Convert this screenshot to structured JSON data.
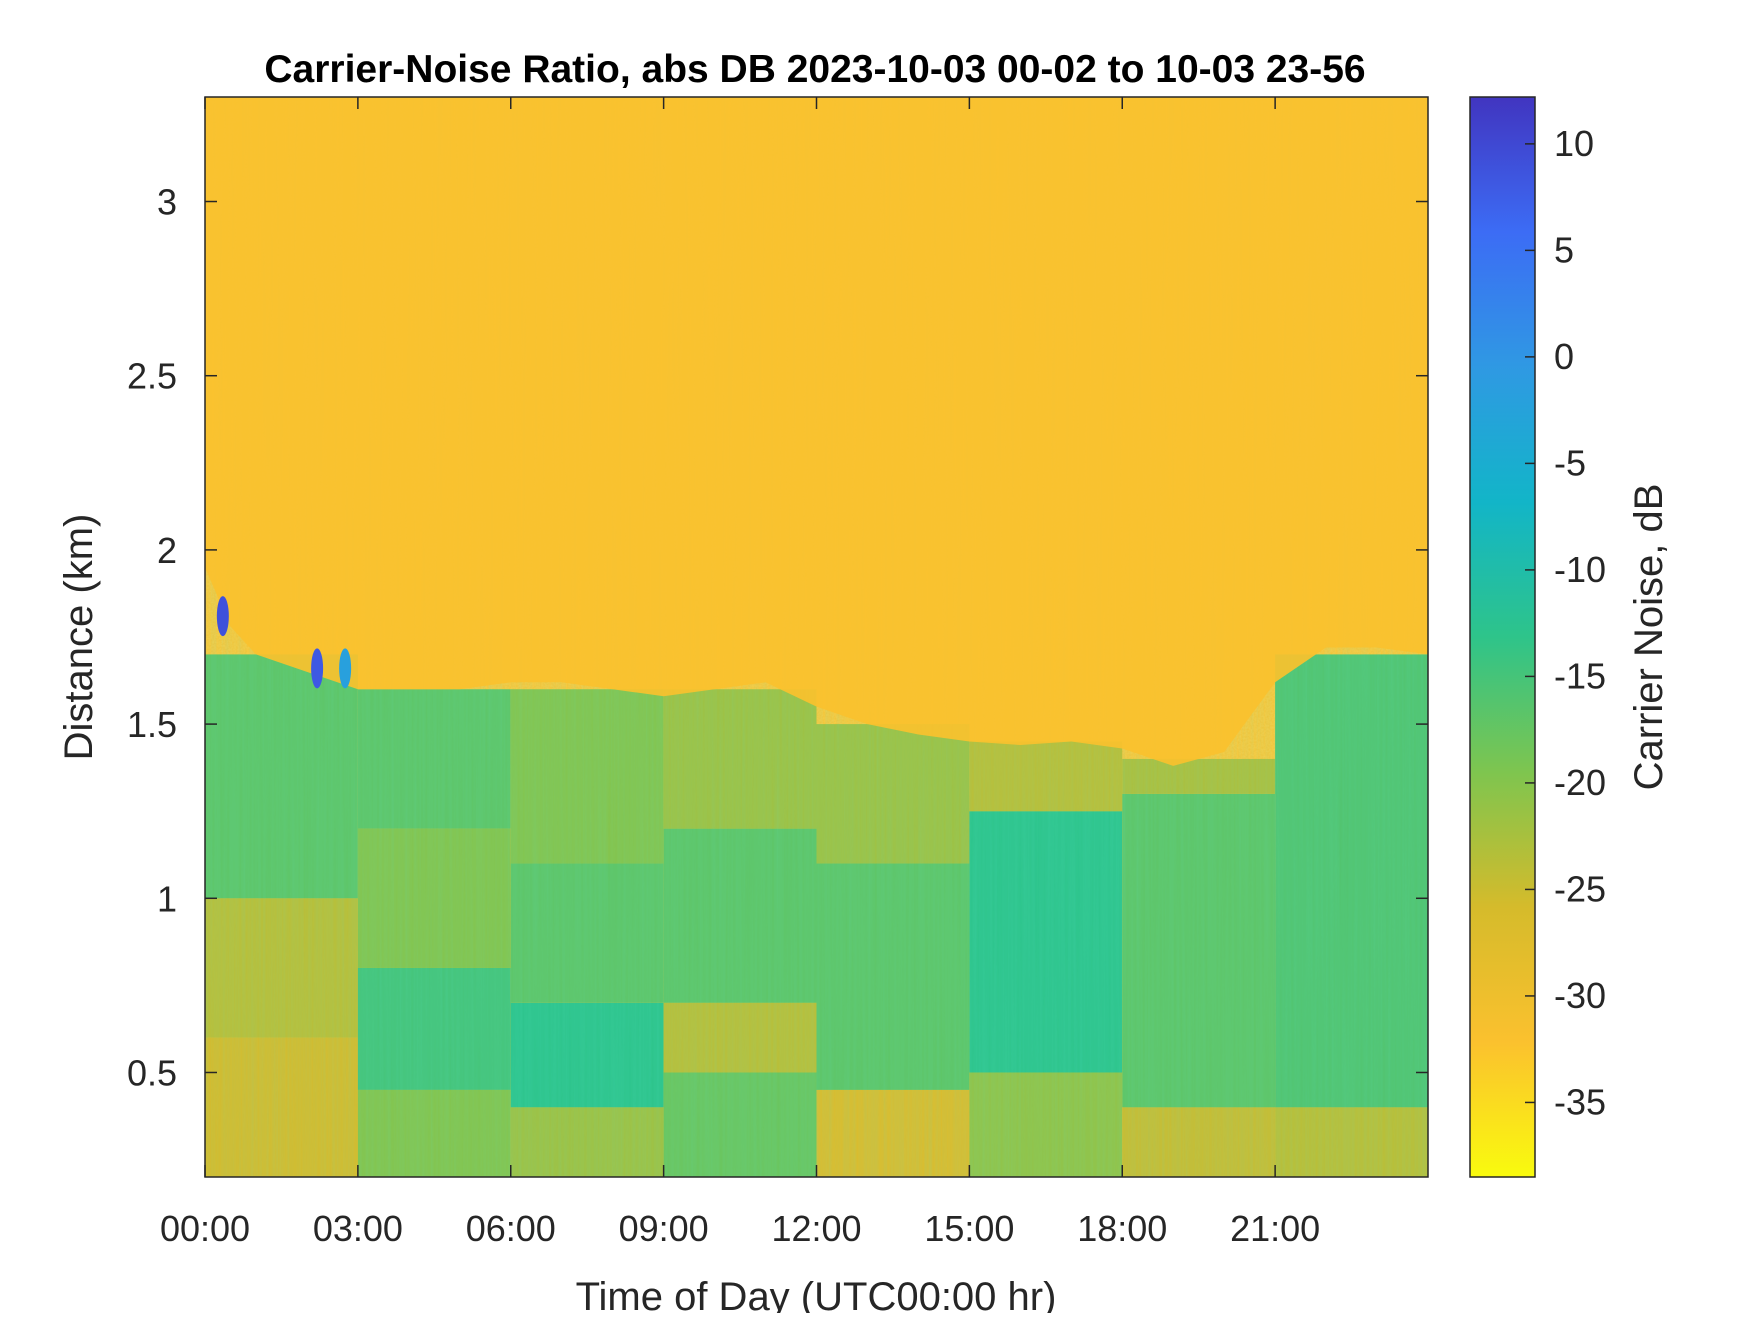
{
  "chart_data": {
    "type": "heatmap",
    "title": "Carrier-Noise Ratio, abs DB 2023-10-03 00-02 to 10-03 23-56",
    "xlabel": "Time of Day (UTC00:00 hr)",
    "ylabel": "Distance (km)",
    "colorbar_label": "Carrier Noise, dB",
    "xlim_hours": [
      0,
      24
    ],
    "ylim_km": [
      0.2,
      3.3
    ],
    "clim_db": [
      -38.5,
      12.2
    ],
    "x_ticks": [
      {
        "hour": 0,
        "label": "00:00"
      },
      {
        "hour": 3,
        "label": "03:00"
      },
      {
        "hour": 6,
        "label": "06:00"
      },
      {
        "hour": 9,
        "label": "09:00"
      },
      {
        "hour": 12,
        "label": "12:00"
      },
      {
        "hour": 15,
        "label": "15:00"
      },
      {
        "hour": 18,
        "label": "18:00"
      },
      {
        "hour": 21,
        "label": "21:00"
      }
    ],
    "y_ticks": [
      {
        "value": 0.5,
        "label": "0.5"
      },
      {
        "value": 1,
        "label": "1"
      },
      {
        "value": 1.5,
        "label": "1.5"
      },
      {
        "value": 2,
        "label": "2"
      },
      {
        "value": 2.5,
        "label": "2.5"
      },
      {
        "value": 3,
        "label": "3"
      }
    ],
    "colorbar_ticks": [
      {
        "value": 10,
        "label": "10"
      },
      {
        "value": 5,
        "label": "5"
      },
      {
        "value": 0,
        "label": "0"
      },
      {
        "value": -5,
        "label": "-5"
      },
      {
        "value": -10,
        "label": "-10"
      },
      {
        "value": -15,
        "label": "-15"
      },
      {
        "value": -20,
        "label": "-20"
      },
      {
        "value": -25,
        "label": "-25"
      },
      {
        "value": -30,
        "label": "-30"
      },
      {
        "value": -35,
        "label": "-35"
      }
    ],
    "colormap": "parula-reversed",
    "colormap_stops": [
      "#f9fb0e",
      "#fbc12e",
      "#d5bb2b",
      "#7ec54f",
      "#2ec48a",
      "#12b5c8",
      "#2f99e3",
      "#3c6cf5",
      "#4135c0"
    ],
    "noise_floor_db": -32,
    "signal_top_km": [
      [
        0,
        1.95
      ],
      [
        0.5,
        1.78
      ],
      [
        1,
        1.7
      ],
      [
        2,
        1.65
      ],
      [
        3,
        1.6
      ],
      [
        4,
        1.6
      ],
      [
        5,
        1.6
      ],
      [
        6,
        1.62
      ],
      [
        7,
        1.62
      ],
      [
        8,
        1.6
      ],
      [
        9,
        1.58
      ],
      [
        10,
        1.6
      ],
      [
        11,
        1.62
      ],
      [
        12,
        1.55
      ],
      [
        13,
        1.5
      ],
      [
        14,
        1.47
      ],
      [
        15,
        1.45
      ],
      [
        16,
        1.44
      ],
      [
        17,
        1.45
      ],
      [
        18,
        1.43
      ],
      [
        19,
        1.38
      ],
      [
        20,
        1.42
      ],
      [
        21,
        1.62
      ],
      [
        22,
        1.72
      ],
      [
        23,
        1.72
      ],
      [
        24,
        1.7
      ]
    ],
    "cells": [
      {
        "h0": 0,
        "h1": 3,
        "d0": 0.2,
        "d1": 0.6,
        "db": -26
      },
      {
        "h0": 0,
        "h1": 3,
        "d0": 0.6,
        "d1": 1.0,
        "db": -24
      },
      {
        "h0": 0,
        "h1": 3,
        "d0": 1.0,
        "d1": 1.7,
        "db": -17
      },
      {
        "h0": 3,
        "h1": 6,
        "d0": 0.2,
        "d1": 0.45,
        "db": -20
      },
      {
        "h0": 3,
        "h1": 6,
        "d0": 0.45,
        "d1": 0.8,
        "db": -15
      },
      {
        "h0": 3,
        "h1": 6,
        "d0": 0.8,
        "d1": 1.2,
        "db": -20
      },
      {
        "h0": 3,
        "h1": 6,
        "d0": 1.2,
        "d1": 1.6,
        "db": -17
      },
      {
        "h0": 6,
        "h1": 9,
        "d0": 0.2,
        "d1": 0.4,
        "db": -22
      },
      {
        "h0": 6,
        "h1": 9,
        "d0": 0.4,
        "d1": 0.7,
        "db": -13
      },
      {
        "h0": 6,
        "h1": 9,
        "d0": 0.7,
        "d1": 1.1,
        "db": -17
      },
      {
        "h0": 6,
        "h1": 9,
        "d0": 1.1,
        "d1": 1.6,
        "db": -20
      },
      {
        "h0": 9,
        "h1": 12,
        "d0": 0.2,
        "d1": 0.5,
        "db": -18
      },
      {
        "h0": 9,
        "h1": 12,
        "d0": 0.5,
        "d1": 0.7,
        "db": -24
      },
      {
        "h0": 9,
        "h1": 12,
        "d0": 0.7,
        "d1": 1.2,
        "db": -17
      },
      {
        "h0": 9,
        "h1": 12,
        "d0": 1.2,
        "d1": 1.6,
        "db": -22
      },
      {
        "h0": 12,
        "h1": 15,
        "d0": 0.2,
        "d1": 0.45,
        "db": -27
      },
      {
        "h0": 12,
        "h1": 15,
        "d0": 0.45,
        "d1": 1.1,
        "db": -17
      },
      {
        "h0": 12,
        "h1": 15,
        "d0": 1.1,
        "d1": 1.5,
        "db": -22
      },
      {
        "h0": 15,
        "h1": 18,
        "d0": 0.2,
        "d1": 0.5,
        "db": -21
      },
      {
        "h0": 15,
        "h1": 18,
        "d0": 0.5,
        "d1": 1.25,
        "db": -13
      },
      {
        "h0": 15,
        "h1": 18,
        "d0": 1.25,
        "d1": 1.45,
        "db": -24
      },
      {
        "h0": 18,
        "h1": 21,
        "d0": 0.2,
        "d1": 0.4,
        "db": -25
      },
      {
        "h0": 18,
        "h1": 21,
        "d0": 0.4,
        "d1": 1.3,
        "db": -17
      },
      {
        "h0": 18,
        "h1": 21,
        "d0": 1.3,
        "d1": 1.4,
        "db": -23
      },
      {
        "h0": 21,
        "h1": 24,
        "d0": 0.2,
        "d1": 0.4,
        "db": -24
      },
      {
        "h0": 21,
        "h1": 24,
        "d0": 0.4,
        "d1": 1.7,
        "db": -16
      }
    ],
    "hotspots": [
      {
        "hour": 0.35,
        "km": 1.81,
        "db": 9
      },
      {
        "hour": 2.2,
        "km": 1.66,
        "db": 8
      },
      {
        "hour": 2.75,
        "km": 1.66,
        "db": -2
      }
    ]
  }
}
